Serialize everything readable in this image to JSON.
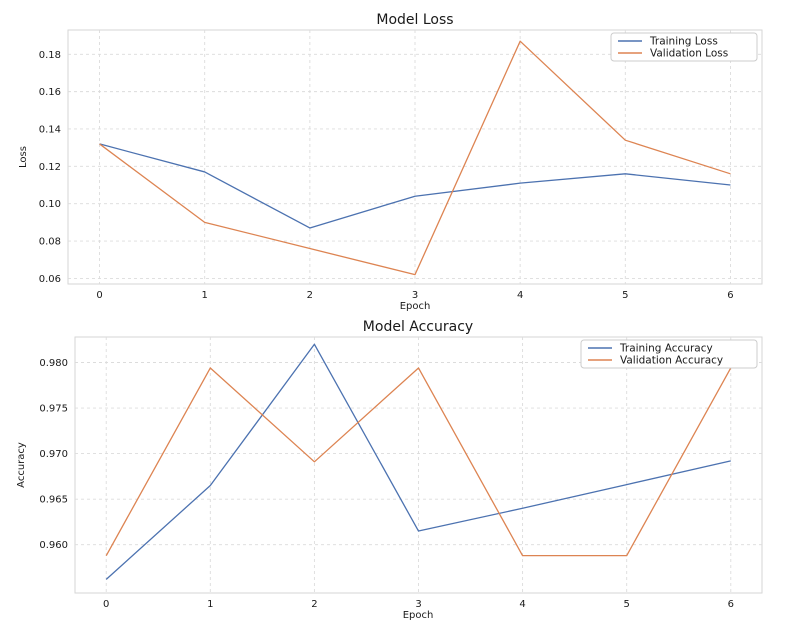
{
  "colors": {
    "training": "#4c72b0",
    "validation": "#dd8452"
  },
  "chart_data": [
    {
      "type": "line",
      "title": "Model Loss",
      "xlabel": "Epoch",
      "ylabel": "Loss",
      "x": [
        0,
        1,
        2,
        3,
        4,
        5,
        6
      ],
      "xticks": [
        "0",
        "1",
        "2",
        "3",
        "4",
        "5",
        "6"
      ],
      "yticks": [
        "0.06",
        "0.08",
        "0.10",
        "0.12",
        "0.14",
        "0.16",
        "0.18"
      ],
      "ylim": [
        0.057,
        0.193
      ],
      "xlim": [
        -0.3,
        6.3
      ],
      "grid": true,
      "legend_position": "top-right",
      "series": [
        {
          "name": "Training Loss",
          "values": [
            0.132,
            0.117,
            0.087,
            0.104,
            0.111,
            0.116,
            0.11
          ]
        },
        {
          "name": "Validation Loss",
          "values": [
            0.132,
            0.09,
            0.076,
            0.062,
            0.187,
            0.134,
            0.116
          ]
        }
      ]
    },
    {
      "type": "line",
      "title": "Model Accuracy",
      "xlabel": "Epoch",
      "ylabel": "Accuracy",
      "x": [
        0,
        1,
        2,
        3,
        4,
        5,
        6
      ],
      "xticks": [
        "0",
        "1",
        "2",
        "3",
        "4",
        "5",
        "6"
      ],
      "yticks": [
        "0.960",
        "0.965",
        "0.970",
        "0.975",
        "0.980"
      ],
      "ylim": [
        0.9547,
        0.9828
      ],
      "xlim": [
        -0.3,
        6.3
      ],
      "grid": true,
      "legend_position": "top-right",
      "series": [
        {
          "name": "Training Accuracy",
          "values": [
            0.9562,
            0.9665,
            0.982,
            0.9615,
            0.964,
            0.9666,
            0.9692
          ]
        },
        {
          "name": "Validation Accuracy",
          "values": [
            0.9588,
            0.9794,
            0.9691,
            0.9794,
            0.9588,
            0.9588,
            0.9794
          ]
        }
      ]
    }
  ]
}
